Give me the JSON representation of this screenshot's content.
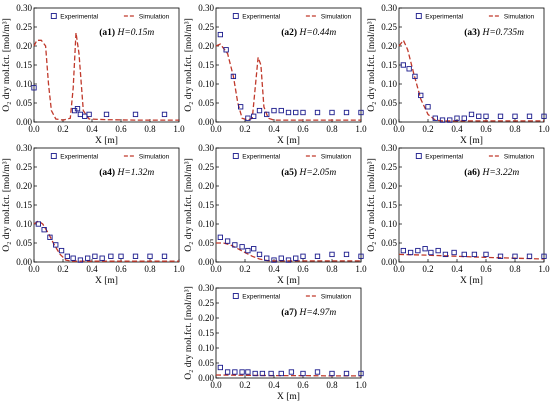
{
  "chart_data": [
    {
      "type": "scatter",
      "panel_label": "(a1)",
      "height_label": "H=0.15m",
      "xlabel": "X [m]",
      "ylabel": "O₂ dry mol.fct. [mol/m³]",
      "xlim": [
        0.0,
        1.0
      ],
      "ylim": [
        0.0,
        0.3
      ],
      "xticks": [
        "0.0",
        "0.2",
        "0.4",
        "0.6",
        "0.8",
        "1.0"
      ],
      "yticks": [
        "0.00",
        "0.05",
        "0.10",
        "0.15",
        "0.20",
        "0.25",
        "0.30"
      ],
      "legend": {
        "experimental": "Experimental",
        "simulation": "Simulation",
        "position": "top"
      },
      "series": [
        {
          "name": "Experimental",
          "style": "open-square",
          "color": "#1a1a8c",
          "x": [
            0.0,
            0.28,
            0.3,
            0.32,
            0.35,
            0.38,
            0.5,
            0.7,
            0.9
          ],
          "y": [
            0.09,
            0.03,
            0.035,
            0.02,
            0.015,
            0.02,
            0.02,
            0.02,
            0.02
          ]
        },
        {
          "name": "Simulation",
          "style": "dashed-line",
          "color": "#c0392b",
          "x": [
            0.0,
            0.02,
            0.05,
            0.08,
            0.1,
            0.12,
            0.15,
            0.2,
            0.25,
            0.27,
            0.29,
            0.31,
            0.34,
            0.38,
            0.5,
            0.7,
            1.0
          ],
          "y": [
            0.2,
            0.215,
            0.215,
            0.2,
            0.1,
            0.03,
            0.008,
            0.005,
            0.01,
            0.09,
            0.235,
            0.18,
            0.03,
            0.008,
            0.006,
            0.005,
            0.005
          ]
        }
      ]
    },
    {
      "type": "scatter",
      "panel_label": "(a2)",
      "height_label": "H=0.44m",
      "xlabel": "X [m]",
      "ylabel": "O₂ dry mol.fct. [mol/m³]",
      "xlim": [
        0.0,
        1.0
      ],
      "ylim": [
        0.0,
        0.3
      ],
      "xticks": [
        "0.0",
        "0.2",
        "0.4",
        "0.6",
        "0.8",
        "1.0"
      ],
      "yticks": [
        "0.00",
        "0.05",
        "0.10",
        "0.15",
        "0.20",
        "0.25",
        "0.30"
      ],
      "legend": {
        "experimental": "Experimental",
        "simulation": "Simulation",
        "position": "top"
      },
      "series": [
        {
          "name": "Experimental",
          "style": "open-square",
          "color": "#1a1a8c",
          "x": [
            0.03,
            0.07,
            0.12,
            0.17,
            0.22,
            0.26,
            0.3,
            0.35,
            0.4,
            0.45,
            0.5,
            0.55,
            0.6,
            0.7,
            0.8,
            0.9,
            1.0
          ],
          "y": [
            0.23,
            0.19,
            0.12,
            0.04,
            0.01,
            0.015,
            0.03,
            0.02,
            0.03,
            0.03,
            0.025,
            0.025,
            0.025,
            0.025,
            0.025,
            0.025,
            0.025
          ]
        },
        {
          "name": "Simulation",
          "style": "dashed-line",
          "color": "#c0392b",
          "x": [
            0.0,
            0.03,
            0.08,
            0.12,
            0.15,
            0.18,
            0.22,
            0.25,
            0.27,
            0.29,
            0.31,
            0.33,
            0.36,
            0.4,
            0.6,
            1.0
          ],
          "y": [
            0.2,
            0.205,
            0.18,
            0.12,
            0.05,
            0.01,
            0.005,
            0.01,
            0.09,
            0.17,
            0.15,
            0.04,
            0.01,
            0.005,
            0.005,
            0.005
          ]
        }
      ]
    },
    {
      "type": "scatter",
      "panel_label": "(a3)",
      "height_label": "H=0.735m",
      "xlabel": "X [m]",
      "ylabel": "O₂ dry mol.fct. [mol/m³]",
      "xlim": [
        0.0,
        1.0
      ],
      "ylim": [
        0.0,
        0.3
      ],
      "xticks": [
        "0.0",
        "0.2",
        "0.4",
        "0.6",
        "0.8",
        "1.0"
      ],
      "yticks": [
        "0.00",
        "0.05",
        "0.10",
        "0.15",
        "0.20",
        "0.25",
        "0.30"
      ],
      "legend": {
        "experimental": "Experimental",
        "simulation": "Simulation",
        "position": "top"
      },
      "series": [
        {
          "name": "Experimental",
          "style": "open-square",
          "color": "#1a1a8c",
          "x": [
            0.03,
            0.07,
            0.11,
            0.15,
            0.2,
            0.25,
            0.3,
            0.35,
            0.4,
            0.45,
            0.5,
            0.55,
            0.6,
            0.7,
            0.8,
            0.9,
            1.0
          ],
          "y": [
            0.15,
            0.14,
            0.12,
            0.07,
            0.04,
            0.01,
            0.005,
            0.005,
            0.01,
            0.01,
            0.02,
            0.015,
            0.015,
            0.015,
            0.015,
            0.015,
            0.015
          ]
        },
        {
          "name": "Simulation",
          "style": "dashed-line",
          "color": "#c0392b",
          "x": [
            0.0,
            0.03,
            0.06,
            0.1,
            0.15,
            0.2,
            0.25,
            0.3,
            0.4,
            0.6,
            1.0
          ],
          "y": [
            0.2,
            0.215,
            0.19,
            0.13,
            0.06,
            0.02,
            0.005,
            0.003,
            0.003,
            0.003,
            0.003
          ]
        }
      ]
    },
    {
      "type": "scatter",
      "panel_label": "(a4)",
      "height_label": "H=1.32m",
      "xlabel": "X [m]",
      "ylabel": "O₂ dry mol.fct. [mol/m³]",
      "xlim": [
        0.0,
        1.0
      ],
      "ylim": [
        0.0,
        0.3
      ],
      "xticks": [
        "0.0",
        "0.2",
        "0.4",
        "0.6",
        "0.8",
        "1.0"
      ],
      "yticks": [
        "0.00",
        "0.05",
        "0.10",
        "0.15",
        "0.20",
        "0.25",
        "0.30"
      ],
      "legend": {
        "experimental": "Experimental",
        "simulation": "Simulation",
        "position": "top"
      },
      "series": [
        {
          "name": "Experimental",
          "style": "open-square",
          "color": "#1a1a8c",
          "x": [
            0.03,
            0.07,
            0.11,
            0.15,
            0.19,
            0.23,
            0.27,
            0.32,
            0.37,
            0.42,
            0.47,
            0.53,
            0.6,
            0.7,
            0.8,
            0.9
          ],
          "y": [
            0.1,
            0.085,
            0.065,
            0.045,
            0.03,
            0.015,
            0.01,
            0.005,
            0.01,
            0.015,
            0.01,
            0.015,
            0.015,
            0.015,
            0.015,
            0.015
          ]
        },
        {
          "name": "Simulation",
          "style": "dashed-line",
          "color": "#c0392b",
          "x": [
            0.0,
            0.03,
            0.06,
            0.1,
            0.14,
            0.18,
            0.22,
            0.26,
            0.3,
            0.4,
            0.6,
            1.0
          ],
          "y": [
            0.1,
            0.108,
            0.1,
            0.075,
            0.045,
            0.02,
            0.005,
            0.002,
            0.002,
            0.002,
            0.002,
            0.002
          ]
        }
      ]
    },
    {
      "type": "scatter",
      "panel_label": "(a5)",
      "height_label": "H=2.05m",
      "xlabel": "X [m]",
      "ylabel": "O₂ dry mol.fct. [mol/m³]",
      "xlim": [
        0.0,
        1.0
      ],
      "ylim": [
        0.0,
        0.3
      ],
      "xticks": [
        "0.0",
        "0.2",
        "0.4",
        "0.6",
        "0.8",
        "1.0"
      ],
      "yticks": [
        "0.00",
        "0.05",
        "0.10",
        "0.15",
        "0.20",
        "0.25",
        "0.30"
      ],
      "legend": {
        "experimental": "Experimental",
        "simulation": "Simulation",
        "position": "top"
      },
      "series": [
        {
          "name": "Experimental",
          "style": "open-square",
          "color": "#1a1a8c",
          "x": [
            0.03,
            0.08,
            0.13,
            0.18,
            0.22,
            0.26,
            0.3,
            0.35,
            0.4,
            0.45,
            0.5,
            0.55,
            0.6,
            0.7,
            0.8,
            0.9,
            1.0
          ],
          "y": [
            0.065,
            0.055,
            0.045,
            0.04,
            0.03,
            0.035,
            0.02,
            0.01,
            0.005,
            0.01,
            0.005,
            0.01,
            0.015,
            0.015,
            0.02,
            0.02,
            0.015
          ]
        },
        {
          "name": "Simulation",
          "style": "dashed-line",
          "color": "#c0392b",
          "x": [
            0.0,
            0.05,
            0.1,
            0.15,
            0.2,
            0.25,
            0.3,
            0.35,
            0.4,
            0.6,
            1.0
          ],
          "y": [
            0.05,
            0.05,
            0.045,
            0.035,
            0.025,
            0.015,
            0.008,
            0.004,
            0.003,
            0.003,
            0.003
          ]
        }
      ]
    },
    {
      "type": "scatter",
      "panel_label": "(a6)",
      "height_label": "H=3.22m",
      "xlabel": "X [m]",
      "ylabel": "O₂ dry mol.fct. [mol/m³]",
      "xlim": [
        0.0,
        1.0
      ],
      "ylim": [
        0.0,
        0.3
      ],
      "xticks": [
        "0.0",
        "0.2",
        "0.4",
        "0.6",
        "0.8",
        "1.0"
      ],
      "yticks": [
        "0.00",
        "0.05",
        "0.10",
        "0.15",
        "0.20",
        "0.25",
        "0.30"
      ],
      "legend": {
        "experimental": "Experimental",
        "simulation": "Simulation",
        "position": "top"
      },
      "series": [
        {
          "name": "Experimental",
          "style": "open-square",
          "color": "#1a1a8c",
          "x": [
            0.03,
            0.08,
            0.13,
            0.18,
            0.22,
            0.27,
            0.32,
            0.38,
            0.45,
            0.52,
            0.6,
            0.7,
            0.8,
            0.9,
            1.0
          ],
          "y": [
            0.03,
            0.025,
            0.03,
            0.035,
            0.025,
            0.03,
            0.02,
            0.025,
            0.02,
            0.02,
            0.02,
            0.015,
            0.015,
            0.015,
            0.015
          ]
        },
        {
          "name": "Simulation",
          "style": "dashed-line",
          "color": "#c0392b",
          "x": [
            0.0,
            0.2,
            0.4,
            0.6,
            0.8,
            1.0
          ],
          "y": [
            0.02,
            0.018,
            0.015,
            0.012,
            0.01,
            0.008
          ]
        }
      ]
    },
    {
      "type": "scatter",
      "panel_label": "(a7)",
      "height_label": "H=4.97m",
      "xlabel": "X [m]",
      "ylabel": "O₂ dry mol.fct. [mol/m³]",
      "xlim": [
        0.0,
        1.0
      ],
      "ylim": [
        0.0,
        0.3
      ],
      "xticks": [
        "0.0",
        "0.2",
        "0.4",
        "0.6",
        "0.8",
        "1.0"
      ],
      "yticks": [
        "0.00",
        "0.05",
        "0.10",
        "0.15",
        "0.20",
        "0.25",
        "0.30"
      ],
      "legend": {
        "experimental": "Experimental",
        "simulation": "Simulation",
        "position": "top"
      },
      "series": [
        {
          "name": "Experimental",
          "style": "open-square",
          "color": "#1a1a8c",
          "x": [
            0.03,
            0.08,
            0.13,
            0.18,
            0.22,
            0.27,
            0.32,
            0.38,
            0.45,
            0.52,
            0.6,
            0.7,
            0.8,
            0.9,
            1.0
          ],
          "y": [
            0.035,
            0.02,
            0.02,
            0.02,
            0.02,
            0.015,
            0.015,
            0.015,
            0.015,
            0.02,
            0.015,
            0.02,
            0.015,
            0.015,
            0.015
          ]
        },
        {
          "name": "Simulation",
          "style": "dashed-line",
          "color": "#c0392b",
          "x": [
            0.0,
            0.2,
            0.4,
            0.6,
            0.8,
            1.0
          ],
          "y": [
            0.01,
            0.009,
            0.008,
            0.008,
            0.007,
            0.007
          ]
        }
      ]
    }
  ]
}
